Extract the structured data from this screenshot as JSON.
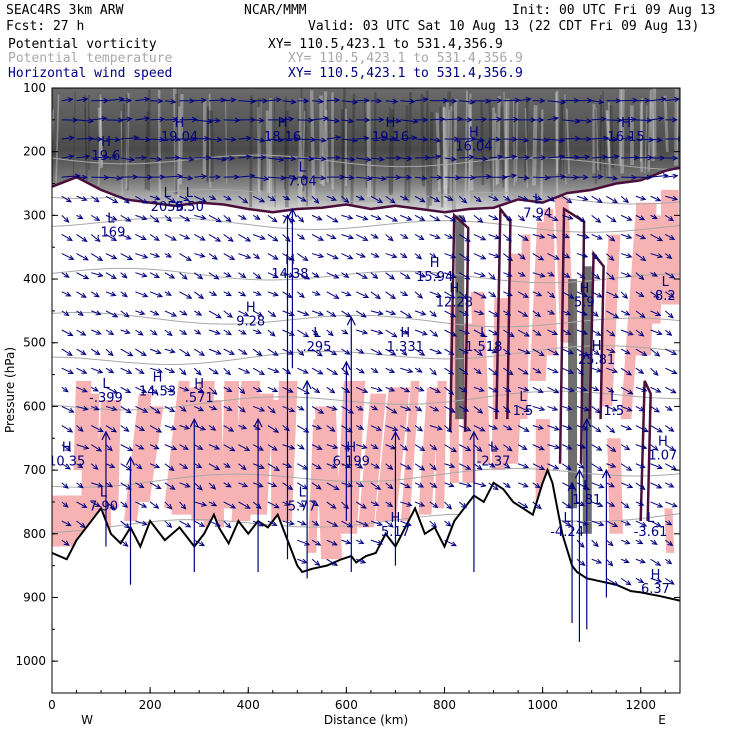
{
  "header": {
    "model": "SEAC4RS  3km ARW",
    "center": "NCAR/MMM",
    "init": "Init: 00 UTC Fri 09 Aug 13",
    "fcst": "Fcst:   27 h",
    "valid": "Valid: 03 UTC Sat 10 Aug 13 (22 CDT Fri 09 Aug 13)",
    "fields": [
      {
        "name": "Potential vorticity",
        "xy": "XY= 110.5,423.1 to 531.4,356.9",
        "color": "#000000"
      },
      {
        "name": "Potential temperature",
        "xy": "XY= 110.5,423.1 to 531.4,356.9",
        "color": "#a8a8a8"
      },
      {
        "name": "Horizontal wind speed",
        "xy": "XY= 110.5,423.1 to 531.4,356.9",
        "color": "#000080"
      }
    ]
  },
  "chart_data": {
    "type": "cross-section",
    "xlabel": "Distance (km)",
    "ylabel": "Pressure (hPa)",
    "xlim": [
      0,
      1280
    ],
    "ylim": [
      1050,
      100
    ],
    "x_ticks": [
      0,
      200,
      400,
      600,
      800,
      1000,
      1200
    ],
    "y_ticks": [
      100,
      200,
      300,
      400,
      500,
      600,
      700,
      800,
      900,
      1000
    ],
    "x_end_labels": {
      "left": "W",
      "right": "E"
    },
    "terrain_surface": {
      "x": [
        0,
        30,
        50,
        80,
        100,
        120,
        140,
        160,
        180,
        200,
        230,
        260,
        290,
        310,
        330,
        340,
        360,
        380,
        400,
        420,
        440,
        460,
        480,
        500,
        510,
        530,
        560,
        590,
        610,
        620,
        640,
        660,
        680,
        700,
        720,
        740,
        760,
        780,
        800,
        820,
        840,
        860,
        880,
        900,
        920,
        940,
        960,
        980,
        1000,
        1010,
        1020,
        1040,
        1060,
        1070,
        1090,
        1120,
        1150,
        1180,
        1200,
        1240,
        1280
      ],
      "p": [
        830,
        840,
        810,
        780,
        760,
        800,
        815,
        790,
        820,
        780,
        810,
        790,
        820,
        800,
        770,
        790,
        815,
        780,
        800,
        780,
        790,
        770,
        810,
        850,
        860,
        855,
        850,
        840,
        835,
        845,
        835,
        830,
        800,
        820,
        790,
        760,
        800,
        790,
        820,
        780,
        760,
        740,
        750,
        720,
        730,
        750,
        760,
        770,
        720,
        700,
        720,
        800,
        850,
        860,
        870,
        875,
        880,
        890,
        892,
        898,
        905
      ]
    },
    "tropopause_pv_line": {
      "x": [
        0,
        50,
        100,
        150,
        200,
        250,
        300,
        350,
        400,
        450,
        500,
        550,
        600,
        650,
        700,
        750,
        800,
        850,
        900,
        950,
        1000,
        1050,
        1100,
        1150,
        1200,
        1250,
        1280
      ],
      "p": [
        255,
        240,
        260,
        275,
        280,
        285,
        280,
        283,
        290,
        295,
        290,
        288,
        283,
        290,
        285,
        290,
        295,
        290,
        288,
        275,
        280,
        265,
        260,
        250,
        245,
        230,
        225
      ]
    },
    "max_labels": [
      {
        "mark": "H",
        "value": "10.35",
        "x": 30,
        "p": 690
      },
      {
        "mark": "L",
        "value": "-.399",
        "x": 110,
        "p": 590
      },
      {
        "mark": "H",
        "value": "14.53",
        "x": 215,
        "p": 580
      },
      {
        "mark": "H",
        "value": ".571",
        "x": 300,
        "p": 590
      },
      {
        "mark": "L",
        "value": "7.90",
        "x": 105,
        "p": 760
      },
      {
        "mark": "L",
        "value": ".169",
        "x": 120,
        "p": 330
      },
      {
        "mark": "L",
        "value": "2056",
        "x": 235,
        "p": 290
      },
      {
        "mark": "L",
        "value": "9.50",
        "x": 280,
        "p": 290
      },
      {
        "mark": "L",
        "value": "7.04",
        "x": 510,
        "p": 250
      },
      {
        "mark": "H",
        "value": "14.38",
        "x": 485,
        "p": 395
      },
      {
        "mark": "H",
        "value": "9.28",
        "x": 405,
        "p": 470
      },
      {
        "mark": "L",
        "value": ".295",
        "x": 540,
        "p": 510
      },
      {
        "mark": "H",
        "value": "1.331",
        "x": 720,
        "p": 510
      },
      {
        "mark": "H",
        "value": "6.199",
        "x": 610,
        "p": 690
      },
      {
        "mark": "H",
        "value": "15.94",
        "x": 780,
        "p": 400
      },
      {
        "mark": "H",
        "value": "12.28",
        "x": 820,
        "p": 440
      },
      {
        "mark": "L",
        "value": "1.518",
        "x": 880,
        "p": 510
      },
      {
        "mark": "L",
        "value": "7.94",
        "x": 990,
        "p": 300
      },
      {
        "mark": "H",
        "value": "5.9",
        "x": 1085,
        "p": 440
      },
      {
        "mark": "H",
        "value": "25.81",
        "x": 1110,
        "p": 530
      },
      {
        "mark": "L",
        "value": "8.2",
        "x": 1250,
        "p": 430
      },
      {
        "mark": "H",
        "value": "1.07",
        "x": 1245,
        "p": 680
      },
      {
        "mark": "L",
        "value": "-2.37",
        "x": 900,
        "p": 690
      },
      {
        "mark": "L",
        "value": "1.5",
        "x": 960,
        "p": 610
      },
      {
        "mark": "L",
        "value": "1.5",
        "x": 1145,
        "p": 610
      },
      {
        "mark": "L",
        "value": "1.81",
        "x": 1090,
        "p": 750
      },
      {
        "mark": "L",
        "value": "-4.24",
        "x": 1050,
        "p": 800
      },
      {
        "mark": "L",
        "value": "-3.61",
        "x": 1220,
        "p": 800
      },
      {
        "mark": "H",
        "value": "6.37",
        "x": 1230,
        "p": 890
      },
      {
        "mark": "L",
        "value": "5.77",
        "x": 510,
        "p": 760
      },
      {
        "mark": "H",
        "value": "5.17",
        "x": 700,
        "p": 800
      },
      {
        "mark": "H",
        "value": "18.16",
        "x": 470,
        "p": 180
      },
      {
        "mark": "H",
        "value": "19.04",
        "x": 260,
        "p": 180
      },
      {
        "mark": "H",
        "value": "19.16",
        "x": 690,
        "p": 180
      },
      {
        "mark": "H",
        "value": "16.04",
        "x": 860,
        "p": 195
      },
      {
        "mark": "H",
        "value": "19.6",
        "x": 110,
        "p": 210
      },
      {
        "mark": "H",
        "value": "16.15",
        "x": 1170,
        "p": 180
      }
    ]
  },
  "colors": {
    "pv_positive_fill": "#f7b3b3",
    "pv_contour": "#4a0f3b",
    "theta_contour": "#a8a8a8",
    "wind_vector": "#000080",
    "stratosphere_shade": "#3c3c3c"
  }
}
